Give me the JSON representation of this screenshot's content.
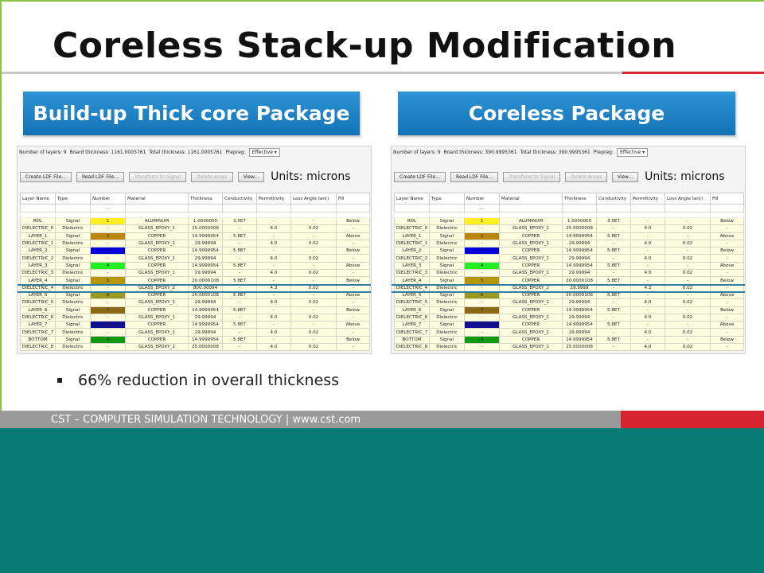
{
  "slide": {
    "title": "Coreless Stack-up Modification",
    "bullet": "66% reduction in overall thickness",
    "footer": "CST – COMPUTER SIMULATION TECHNOLOGY | www.cst.com",
    "colors": {
      "accent_red": "#d9232e",
      "banner_blue": "#1a7fc4",
      "background_bottom": "#087b76",
      "highlight": "#2c7fa7"
    }
  },
  "panels": [
    {
      "banner": "Build-up Thick core Package",
      "header": {
        "layers": "Number of layers: 9",
        "board_thickness": "Board thickness: 1161.0005761",
        "total_thickness": "Total thickness: 1161.0005761",
        "prepreg_label": "Prepreg:",
        "prepreg_value": "Effective"
      },
      "buttons": [
        "Create LDF File...",
        "Read LDF File...",
        "Transform to Signal",
        "Delete Areas",
        "View..."
      ],
      "units": "Units: microns",
      "columns": [
        "Layer Name",
        "Type",
        "Number",
        "Material",
        "Thickness",
        "Conductivity",
        "Permittivity",
        "Loss Angle tan()",
        "Fill"
      ],
      "filter_placeholder": "...",
      "rows": [
        {
          "name": "RDL",
          "type": "Signal",
          "number": "1",
          "color": "#ffee22",
          "material": "ALUMINUM",
          "thickness": "1.0000005",
          "cond": "3.5E7",
          "perm": "-",
          "loss": "-",
          "fill": "Below"
        },
        {
          "name": "DIELECTRIC_0",
          "type": "Dielectric",
          "number": "-",
          "color": "",
          "material": "GLASS_EPOXY_1",
          "thickness": "25.0000008",
          "cond": "-",
          "perm": "4.0",
          "loss": "0.02",
          "fill": "-"
        },
        {
          "name": "LAYER_1",
          "type": "Signal",
          "number": "2",
          "color": "#b8860b",
          "material": "COPPER",
          "thickness": "14.9999954",
          "cond": "5.8E7",
          "perm": "-",
          "loss": "-",
          "fill": "Above"
        },
        {
          "name": "DIELECTRIC_1",
          "type": "Dielectric",
          "number": "-",
          "color": "",
          "material": "GLASS_EPOXY_1",
          "thickness": "29.99994",
          "cond": "-",
          "perm": "4.0",
          "loss": "0.02",
          "fill": "-"
        },
        {
          "name": "LAYER_2",
          "type": "Signal",
          "number": "3",
          "color": "#0000dd",
          "material": "COPPER",
          "thickness": "14.9999954",
          "cond": "5.8E7",
          "perm": "-",
          "loss": "-",
          "fill": "Below"
        },
        {
          "name": "DIELECTRIC_2",
          "type": "Dielectric",
          "number": "-",
          "color": "",
          "material": "GLASS_EPOXY_1",
          "thickness": "29.99994",
          "cond": "-",
          "perm": "4.0",
          "loss": "0.02",
          "fill": "-"
        },
        {
          "name": "LAYER_3",
          "type": "Signal",
          "number": "4",
          "color": "#22ee22",
          "material": "COPPER",
          "thickness": "14.9999954",
          "cond": "5.8E7",
          "perm": "-",
          "loss": "-",
          "fill": "Above"
        },
        {
          "name": "DIELECTRIC_3",
          "type": "Dielectric",
          "number": "-",
          "color": "",
          "material": "GLASS_EPOXY_1",
          "thickness": "29.99994",
          "cond": "-",
          "perm": "4.0",
          "loss": "0.02",
          "fill": "-"
        },
        {
          "name": "LAYER_4",
          "type": "Signal",
          "number": "5",
          "color": "#b8960b",
          "material": "COPPER",
          "thickness": "20.0000108",
          "cond": "5.8E7",
          "perm": "-",
          "loss": "-",
          "fill": "Below"
        },
        {
          "name": "DIELECTRIC_4",
          "type": "Dielectric",
          "number": "-",
          "color": "",
          "material": "GLASS_EPOXY_2",
          "thickness": "800.00094",
          "cond": "-",
          "perm": "4.3",
          "loss": "0.02",
          "fill": "-",
          "highlight": true
        },
        {
          "name": "LAYER_5",
          "type": "Signal",
          "number": "6",
          "color": "#9a9a20",
          "material": "COPPER",
          "thickness": "20.0000108",
          "cond": "5.8E7",
          "perm": "-",
          "loss": "-",
          "fill": "Above"
        },
        {
          "name": "DIELECTRIC_5",
          "type": "Dielectric",
          "number": "-",
          "color": "",
          "material": "GLASS_EPOXY_1",
          "thickness": "29.99994",
          "cond": "-",
          "perm": "4.0",
          "loss": "0.02",
          "fill": "-"
        },
        {
          "name": "LAYER_6",
          "type": "Signal",
          "number": "7",
          "color": "#8b6914",
          "material": "COPPER",
          "thickness": "14.9999954",
          "cond": "5.8E7",
          "perm": "-",
          "loss": "-",
          "fill": "Below"
        },
        {
          "name": "DIELECTRIC_6",
          "type": "Dielectric",
          "number": "-",
          "color": "",
          "material": "GLASS_EPOXY_1",
          "thickness": "29.99994",
          "cond": "-",
          "perm": "4.0",
          "loss": "0.02",
          "fill": "-"
        },
        {
          "name": "LAYER_7",
          "type": "Signal",
          "number": "8",
          "color": "#101090",
          "material": "COPPER",
          "thickness": "14.9999954",
          "cond": "5.8E7",
          "perm": "-",
          "loss": "-",
          "fill": "Above"
        },
        {
          "name": "DIELECTRIC_7",
          "type": "Dielectric",
          "number": "-",
          "color": "",
          "material": "GLASS_EPOXY_1",
          "thickness": "29.99994",
          "cond": "-",
          "perm": "4.0",
          "loss": "0.02",
          "fill": "-"
        },
        {
          "name": "BOTTOM",
          "type": "Signal",
          "number": "9",
          "color": "#119911",
          "material": "COPPER",
          "thickness": "14.9999954",
          "cond": "5.8E7",
          "perm": "-",
          "loss": "-",
          "fill": "Below"
        },
        {
          "name": "DIELECTRIC_8",
          "type": "Dielectric",
          "number": "-",
          "color": "",
          "material": "GLASS_EPOXY_1",
          "thickness": "25.0000008",
          "cond": "-",
          "perm": "4.0",
          "loss": "0.02",
          "fill": "-"
        }
      ]
    },
    {
      "banner": "Coreless Package",
      "header": {
        "layers": "Number of layers: 9",
        "board_thickness": "Board thickness: 390.9995361",
        "total_thickness": "Total thickness: 390.9995361",
        "prepreg_label": "Prepreg:",
        "prepreg_value": "Effective"
      },
      "buttons": [
        "Create LDF File...",
        "Read LDF File...",
        "Transform to Signal",
        "Delete Areas",
        "View..."
      ],
      "units": "Units: microns",
      "columns": [
        "Layer Name",
        "Type",
        "Number",
        "Material",
        "Thickness",
        "Conductivity",
        "Permittivity",
        "Loss Angle tan()",
        "Fill"
      ],
      "filter_placeholder": "...",
      "rows": [
        {
          "name": "RDL",
          "type": "Signal",
          "number": "1",
          "color": "#ffee22",
          "material": "ALUMINUM",
          "thickness": "1.0000005",
          "cond": "3.5E7",
          "perm": "-",
          "loss": "-",
          "fill": "Below"
        },
        {
          "name": "DIELECTRIC_0",
          "type": "Dielectric",
          "number": "-",
          "color": "",
          "material": "GLASS_EPOXY_1",
          "thickness": "25.0000008",
          "cond": "-",
          "perm": "4.0",
          "loss": "0.02",
          "fill": "-"
        },
        {
          "name": "LAYER_1",
          "type": "Signal",
          "number": "2",
          "color": "#b8860b",
          "material": "COPPER",
          "thickness": "14.9999954",
          "cond": "5.8E7",
          "perm": "-",
          "loss": "-",
          "fill": "Above"
        },
        {
          "name": "DIELECTRIC_1",
          "type": "Dielectric",
          "number": "-",
          "color": "",
          "material": "GLASS_EPOXY_1",
          "thickness": "29.99994",
          "cond": "-",
          "perm": "4.0",
          "loss": "0.02",
          "fill": "-"
        },
        {
          "name": "LAYER_2",
          "type": "Signal",
          "number": "3",
          "color": "#0000dd",
          "material": "COPPER",
          "thickness": "14.9999954",
          "cond": "5.8E7",
          "perm": "-",
          "loss": "-",
          "fill": "Below"
        },
        {
          "name": "DIELECTRIC_2",
          "type": "Dielectric",
          "number": "-",
          "color": "",
          "material": "GLASS_EPOXY_1",
          "thickness": "29.99994",
          "cond": "-",
          "perm": "4.0",
          "loss": "0.02",
          "fill": "-"
        },
        {
          "name": "LAYER_3",
          "type": "Signal",
          "number": "4",
          "color": "#22ee22",
          "material": "COPPER",
          "thickness": "14.9999954",
          "cond": "5.8E7",
          "perm": "-",
          "loss": "-",
          "fill": "Above"
        },
        {
          "name": "DIELECTRIC_3",
          "type": "Dielectric",
          "number": "-",
          "color": "",
          "material": "GLASS_EPOXY_1",
          "thickness": "29.99994",
          "cond": "-",
          "perm": "4.0",
          "loss": "0.02",
          "fill": "-"
        },
        {
          "name": "LAYER_4",
          "type": "Signal",
          "number": "5",
          "color": "#b8960b",
          "material": "COPPER",
          "thickness": "20.0000108",
          "cond": "5.8E7",
          "perm": "-",
          "loss": "-",
          "fill": "Below"
        },
        {
          "name": "DIELECTRIC_4",
          "type": "Dielectric",
          "number": "-",
          "color": "",
          "material": "GLASS_EPOXY_2",
          "thickness": "29.9999",
          "cond": "-",
          "perm": "4.3",
          "loss": "0.02",
          "fill": "-",
          "highlight": true
        },
        {
          "name": "LAYER_5",
          "type": "Signal",
          "number": "6",
          "color": "#9a9a20",
          "material": "COPPER",
          "thickness": "20.0000108",
          "cond": "5.8E7",
          "perm": "-",
          "loss": "-",
          "fill": "Above"
        },
        {
          "name": "DIELECTRIC_5",
          "type": "Dielectric",
          "number": "-",
          "color": "",
          "material": "GLASS_EPOXY_1",
          "thickness": "29.99994",
          "cond": "-",
          "perm": "4.0",
          "loss": "0.02",
          "fill": "-"
        },
        {
          "name": "LAYER_6",
          "type": "Signal",
          "number": "7",
          "color": "#8b6914",
          "material": "COPPER",
          "thickness": "14.9999954",
          "cond": "5.8E7",
          "perm": "-",
          "loss": "-",
          "fill": "Below"
        },
        {
          "name": "DIELECTRIC_6",
          "type": "Dielectric",
          "number": "-",
          "color": "",
          "material": "GLASS_EPOXY_1",
          "thickness": "29.99994",
          "cond": "-",
          "perm": "4.0",
          "loss": "0.02",
          "fill": "-"
        },
        {
          "name": "LAYER_7",
          "type": "Signal",
          "number": "8",
          "color": "#101090",
          "material": "COPPER",
          "thickness": "14.9999954",
          "cond": "5.8E7",
          "perm": "-",
          "loss": "-",
          "fill": "Above"
        },
        {
          "name": "DIELECTRIC_7",
          "type": "Dielectric",
          "number": "-",
          "color": "",
          "material": "GLASS_EPOXY_1",
          "thickness": "29.99994",
          "cond": "-",
          "perm": "4.0",
          "loss": "0.02",
          "fill": "-"
        },
        {
          "name": "BOTTOM",
          "type": "Signal",
          "number": "9",
          "color": "#119911",
          "material": "COPPER",
          "thickness": "14.9999954",
          "cond": "5.8E7",
          "perm": "-",
          "loss": "-",
          "fill": "Below"
        },
        {
          "name": "DIELECTRIC_8",
          "type": "Dielectric",
          "number": "-",
          "color": "",
          "material": "GLASS_EPOXY_1",
          "thickness": "25.0000008",
          "cond": "-",
          "perm": "4.0",
          "loss": "0.02",
          "fill": "-"
        }
      ]
    }
  ]
}
